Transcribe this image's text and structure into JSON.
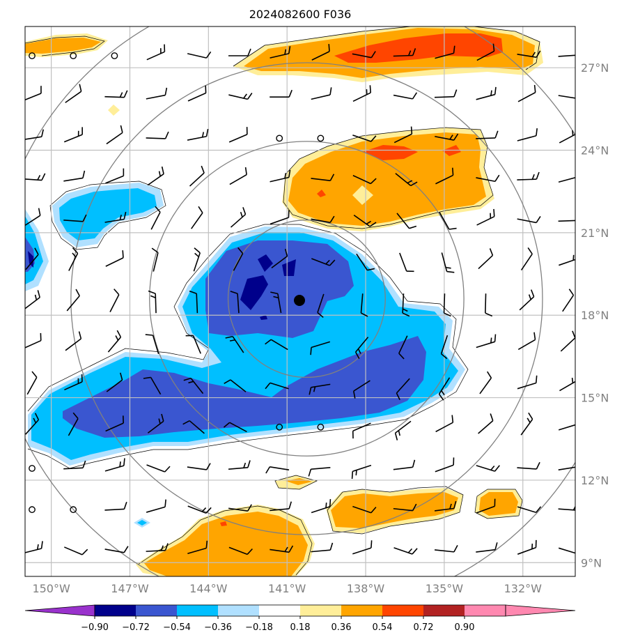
{
  "title": "2024082600 F036",
  "map": {
    "lon_range": [
      -151,
      -130
    ],
    "lat_range": [
      8.5,
      28.5
    ],
    "center": {
      "lon": -140.25,
      "lat": 18.6
    },
    "range_ring_radii_deg": [
      3,
      6,
      9,
      12
    ],
    "lat_ticks": [
      {
        "lat": 27,
        "label": "27°N"
      },
      {
        "lat": 24,
        "label": "24°N"
      },
      {
        "lat": 21,
        "label": "21°N"
      },
      {
        "lat": 18,
        "label": "18°N"
      },
      {
        "lat": 15,
        "label": "15°N"
      },
      {
        "lat": 12,
        "label": "12°N"
      },
      {
        "lat": 9,
        "label": "9°N"
      }
    ],
    "lon_ticks": [
      {
        "lon": -150,
        "label": "150°W"
      },
      {
        "lon": -147,
        "label": "147°W"
      },
      {
        "lon": -144,
        "label": "144°W"
      },
      {
        "lon": -141,
        "label": "141°W"
      },
      {
        "lon": -138,
        "label": "138°W"
      },
      {
        "lon": -135,
        "label": "135°W"
      },
      {
        "lon": -132,
        "label": "132°W"
      }
    ],
    "grid_color": "#c0c0c0",
    "ring_color": "#808080"
  },
  "colorbar": {
    "labels": [
      "−0.90",
      "−0.72",
      "−0.54",
      "−0.36",
      "−0.18",
      "0.18",
      "0.36",
      "0.54",
      "0.72",
      "0.90"
    ],
    "colors": {
      "under": "#9932cc",
      "n090": "#9932cc",
      "n072": "#00008b",
      "n054": "#3a56d0",
      "n036": "#00bfff",
      "n018": "#b0e0ff",
      "zero": "#ffffff",
      "p018": "#ffee99",
      "p036": "#ffa500",
      "p054": "#ff4500",
      "p072": "#b22222",
      "p090": "#ff88b0",
      "over": "#ff88b0"
    }
  },
  "legend": {
    "tc_center": "black dot",
    "calm": "open circles",
    "wind": "black wind barbs"
  }
}
